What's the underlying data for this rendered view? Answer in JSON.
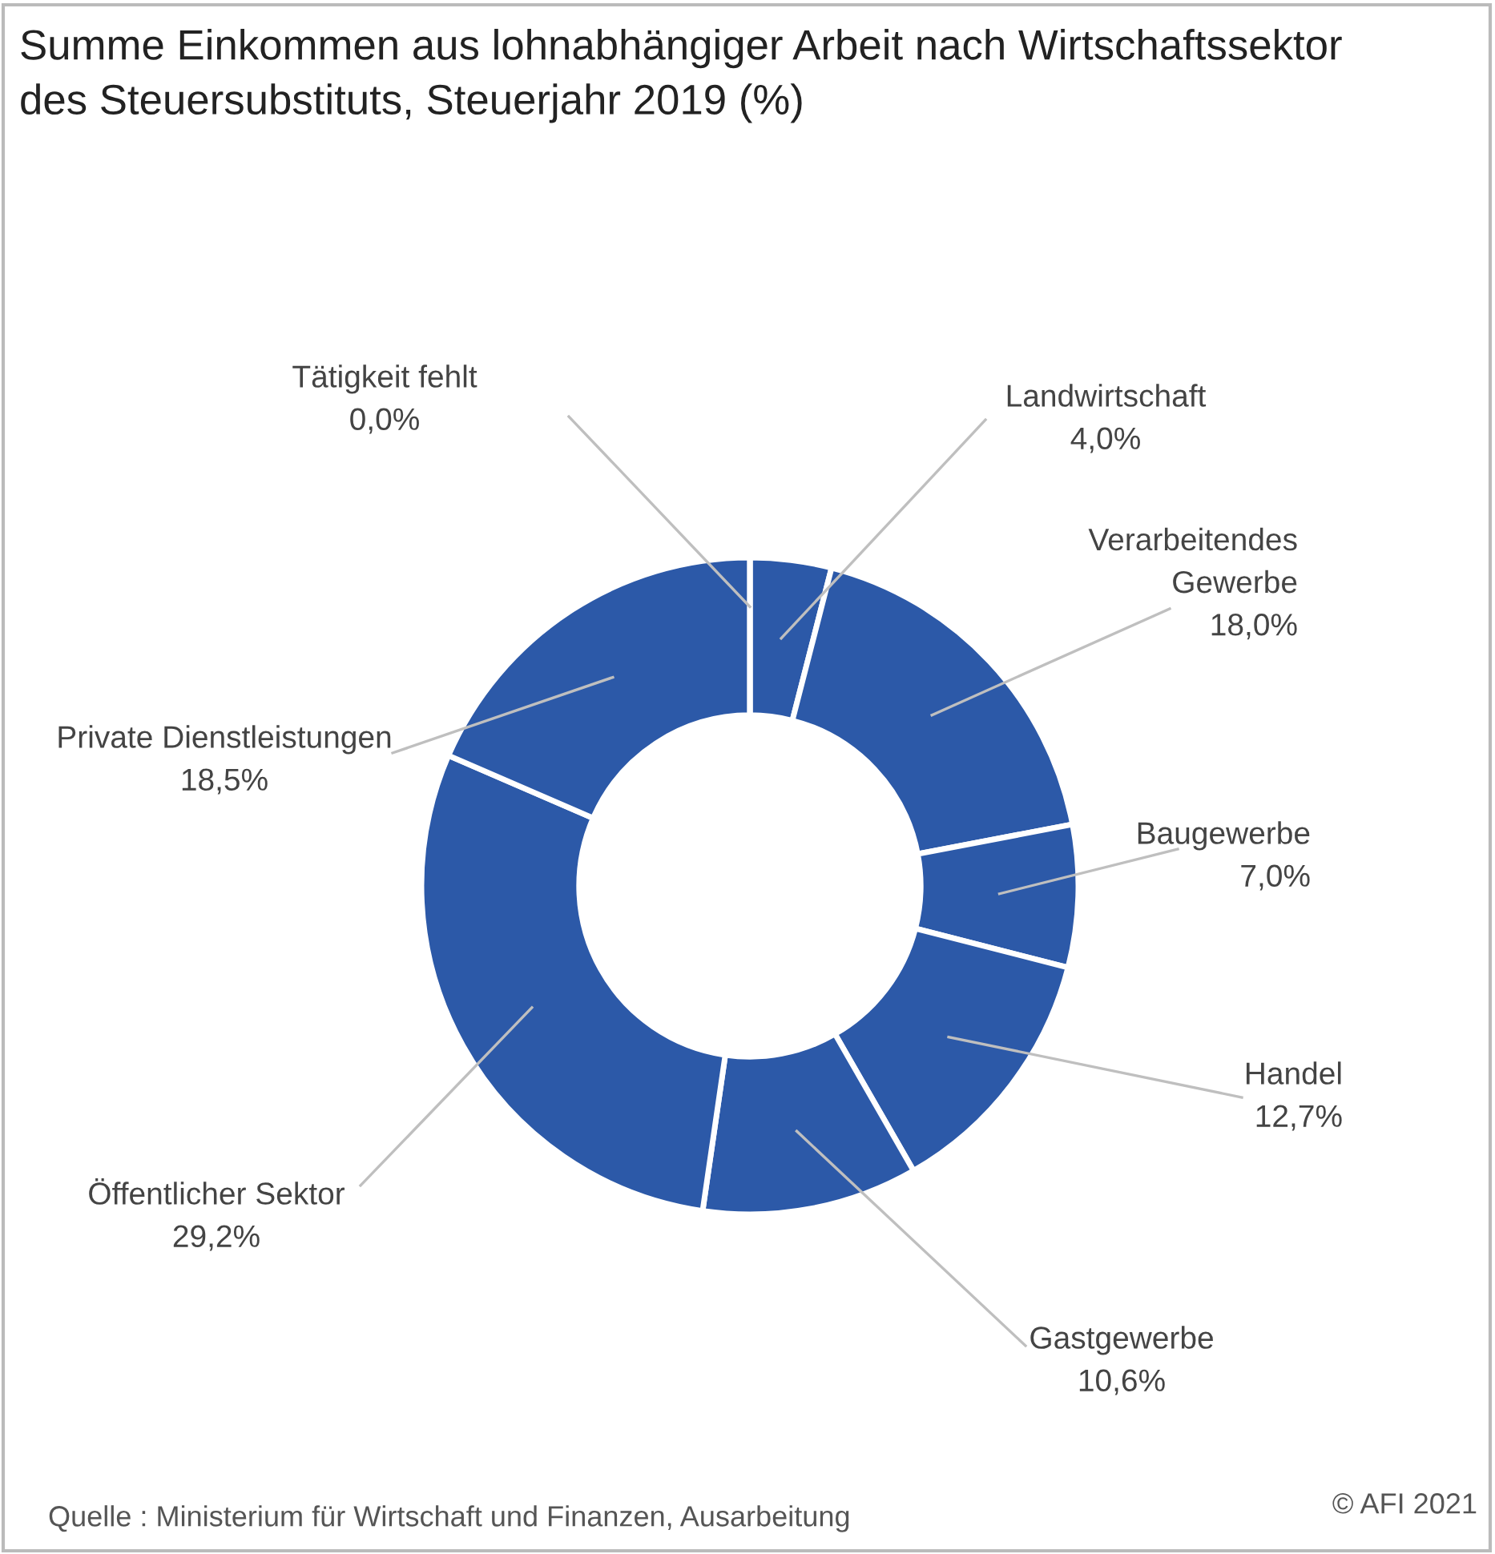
{
  "chart_data": {
    "type": "donut",
    "title": "Summe Einkommen aus lohnabhängiger Arbeit nach Wirtschaftssektor\ndes Steuersubstituts, Steuerjahr 2019 (%)",
    "categories": [
      "Landwirtschaft",
      "Verarbeitendes Gewerbe",
      "Baugewerbe",
      "Handel",
      "Gastgewerbe",
      "Öffentlicher Sektor",
      "Private Dienstleistungen",
      "Tätigkeit fehlt"
    ],
    "values": [
      4.0,
      18.0,
      7.0,
      12.7,
      10.6,
      29.2,
      18.5,
      0.0
    ],
    "value_labels": [
      "4,0%",
      "18,0%",
      "7,0%",
      "12,7%",
      "10,6%",
      "29,2%",
      "18,5%",
      "0,0%"
    ],
    "colors": [
      "#2c59a8",
      "#2c59a8",
      "#2c59a8",
      "#2c59a8",
      "#2c59a8",
      "#2c59a8",
      "#2c59a8",
      "#2c59a8"
    ],
    "annotations": [
      "Quelle : Ministerium für Wirtschaft und Finanzen, Ausarbeitung",
      "© AFI 2021"
    ]
  }
}
